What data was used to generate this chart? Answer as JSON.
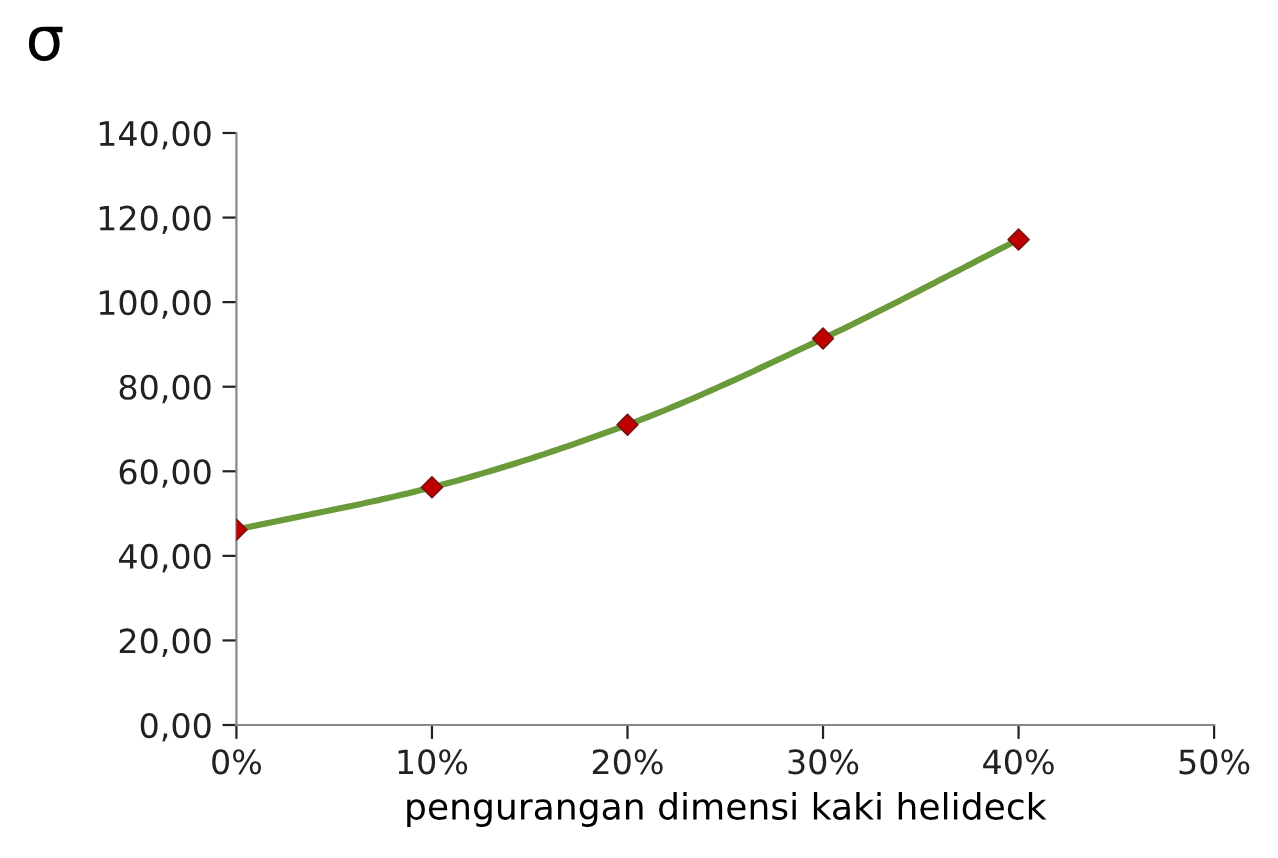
{
  "chart_data": {
    "type": "line",
    "ylabel": "σ",
    "xlabel": "pengurangan dimensi kaki helideck",
    "x": [
      0,
      10,
      20,
      30,
      40
    ],
    "series": [
      {
        "color": "#6a9a3a",
        "colors": [
          "#c00000",
          "#c00000",
          "#c00000",
          "#c00000",
          "#c00000"
        ],
        "values": [
          46.2,
          56.2,
          71.0,
          91.4,
          114.8
        ]
      }
    ],
    "marker": "diamond",
    "line_style": "solid",
    "grid": false,
    "legend": false,
    "xlim": [
      0,
      50
    ],
    "xticks": [
      {
        "value": 0,
        "label": "0%"
      },
      {
        "value": 10,
        "label": "10%"
      },
      {
        "value": 20,
        "label": "20%"
      },
      {
        "value": 30,
        "label": "30%"
      },
      {
        "value": 40,
        "label": "40%"
      },
      {
        "value": 50,
        "label": "50%"
      }
    ],
    "ylim": [
      0,
      140
    ],
    "yticks": [
      {
        "value": 0,
        "label": "0,00"
      },
      {
        "value": 20,
        "label": "20,00"
      },
      {
        "value": 40,
        "label": "40,00"
      },
      {
        "value": 60,
        "label": "60,00"
      },
      {
        "value": 80,
        "label": "80,00"
      },
      {
        "value": 100,
        "label": "100,00"
      },
      {
        "value": 120,
        "label": "120,00"
      },
      {
        "value": 140,
        "label": "140,00"
      }
    ]
  }
}
